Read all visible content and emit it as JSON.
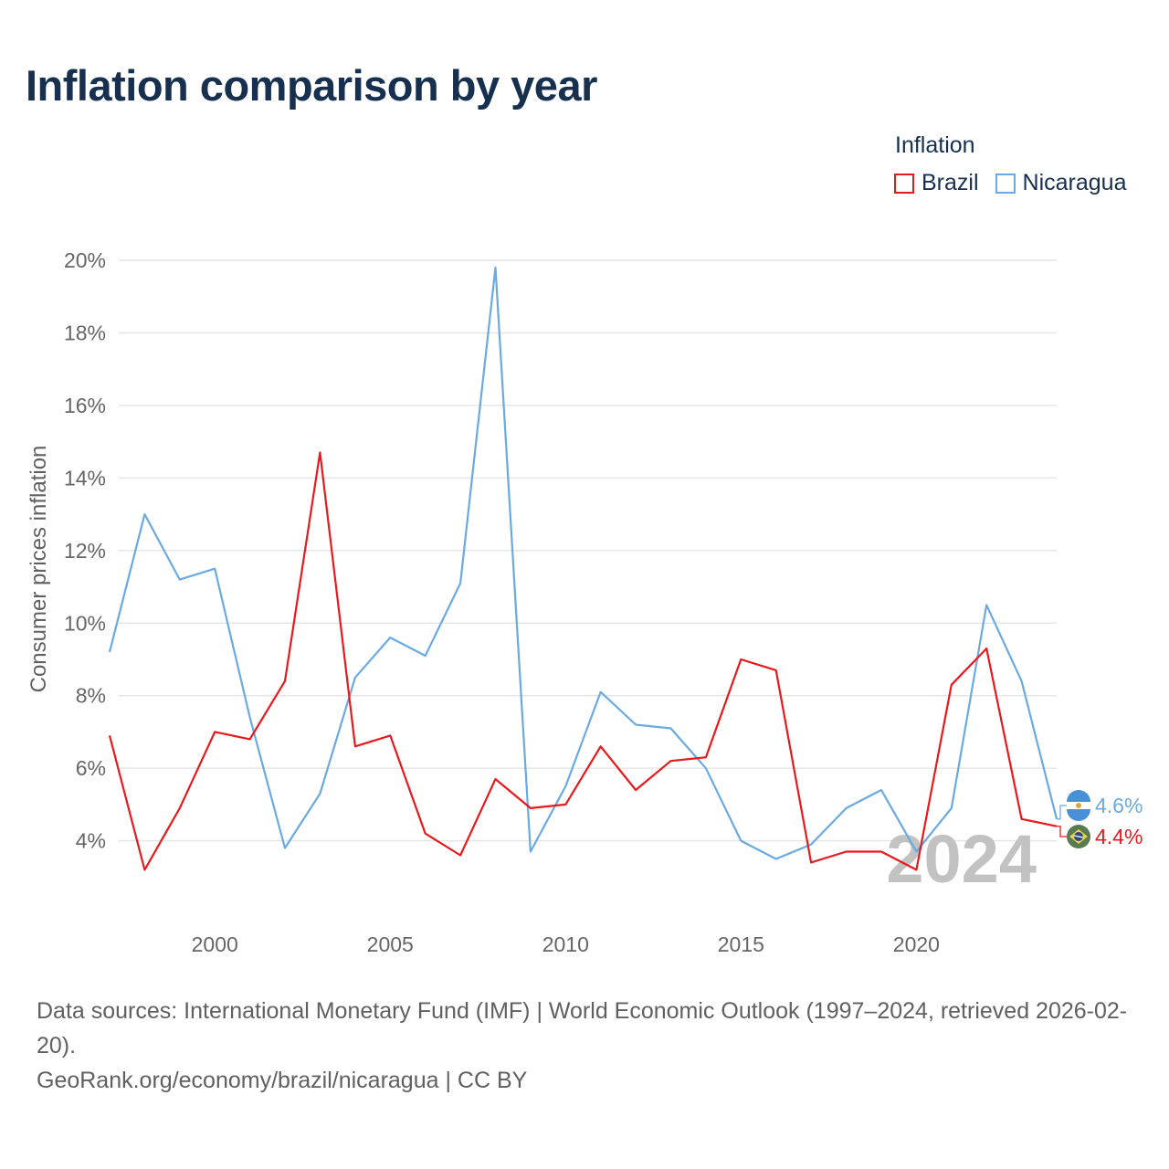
{
  "title": "Inflation comparison by year",
  "legend": {
    "title": "Inflation",
    "items": [
      {
        "label": "Brazil",
        "color": "#e8191c"
      },
      {
        "label": "Nicaragua",
        "color": "#6aaae0"
      }
    ]
  },
  "chart_data": {
    "type": "line",
    "title": "Inflation comparison by year",
    "xlabel": "",
    "ylabel": "Consumer prices inflation",
    "x": [
      1997,
      1998,
      1999,
      2000,
      2001,
      2002,
      2003,
      2004,
      2005,
      2006,
      2007,
      2008,
      2009,
      2010,
      2011,
      2012,
      2013,
      2014,
      2015,
      2016,
      2017,
      2018,
      2019,
      2020,
      2021,
      2022,
      2023,
      2024
    ],
    "series": [
      {
        "name": "Brazil",
        "color": "#e8191c",
        "values": [
          6.9,
          3.2,
          4.9,
          7.0,
          6.8,
          8.4,
          14.7,
          6.6,
          6.9,
          4.2,
          3.6,
          5.7,
          4.9,
          5.0,
          6.6,
          5.4,
          6.2,
          6.3,
          9.0,
          8.7,
          3.4,
          3.7,
          3.7,
          3.2,
          8.3,
          9.3,
          4.6,
          4.4
        ]
      },
      {
        "name": "Nicaragua",
        "color": "#6aaae0",
        "values": [
          9.2,
          13.0,
          11.2,
          11.5,
          7.4,
          3.8,
          5.3,
          8.5,
          9.6,
          9.1,
          11.1,
          19.8,
          3.7,
          5.5,
          8.1,
          7.2,
          7.1,
          6.0,
          4.0,
          3.5,
          3.9,
          4.9,
          5.4,
          3.7,
          4.9,
          10.5,
          8.4,
          4.6
        ]
      }
    ],
    "xlim": [
      1997,
      2024
    ],
    "ylim": [
      1.8,
      20
    ],
    "yticks": [
      4,
      6,
      8,
      10,
      12,
      14,
      16,
      18,
      20
    ],
    "ytick_labels": [
      "4%",
      "6%",
      "8%",
      "10%",
      "12%",
      "14%",
      "16%",
      "18%",
      "20%"
    ],
    "xticks": [
      2000,
      2005,
      2010,
      2015,
      2020
    ],
    "xtick_labels": [
      "2000",
      "2005",
      "2010",
      "2015",
      "2020"
    ],
    "year_watermark": "2024",
    "end_labels": [
      {
        "series": "Nicaragua",
        "text": "4.6%"
      },
      {
        "series": "Brazil",
        "text": "4.4%"
      }
    ]
  },
  "footer": {
    "sources": "Data sources: International Monetary Fund (IMF) | World Economic Outlook (1997–2024, retrieved 2026-02-20).",
    "credit": "GeoRank.org/economy/brazil/nicaragua | CC BY"
  }
}
